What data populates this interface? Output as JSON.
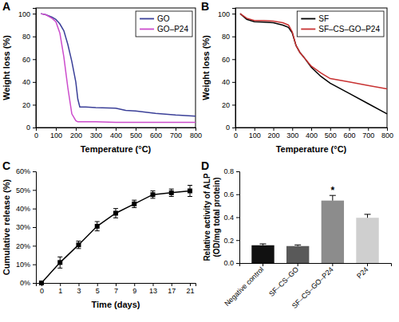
{
  "chart_data": [
    {
      "type": "line",
      "label": "A",
      "xlabel": "Temperature (°C)",
      "ylabel": "Weight loss (%)",
      "x": [
        25,
        50,
        80,
        100,
        120,
        140,
        160,
        180,
        200,
        210,
        220,
        250,
        300,
        400,
        450,
        500,
        600,
        700,
        800
      ],
      "series": [
        {
          "name": "GO",
          "color": "#3a3f98",
          "values": [
            100,
            99,
            97,
            95,
            91,
            85,
            73,
            58,
            40,
            25,
            18,
            18,
            17.5,
            17,
            15,
            14.5,
            12.5,
            11,
            10
          ]
        },
        {
          "name": "GO–P24",
          "color": "#cc4ccc",
          "values": [
            100,
            99,
            96,
            93,
            83,
            62,
            35,
            12,
            6,
            5,
            5,
            5,
            5,
            4.5,
            4.5,
            4.5,
            4.5,
            4.5,
            4.5
          ]
        }
      ],
      "xlim": [
        0,
        800
      ],
      "xticks": [
        0,
        100,
        200,
        300,
        400,
        500,
        600,
        700,
        800
      ],
      "ylim": [
        0,
        105
      ],
      "yticks": [
        0,
        20,
        40,
        60,
        80,
        100
      ],
      "legend": "top-right"
    },
    {
      "type": "line",
      "label": "B",
      "xlabel": "Temperature (°C)",
      "ylabel": "Weight loss (%)",
      "x": [
        25,
        60,
        100,
        150,
        200,
        250,
        280,
        300,
        320,
        340,
        360,
        400,
        450,
        500,
        600,
        700,
        800
      ],
      "series": [
        {
          "name": "SF",
          "color": "#000000",
          "values": [
            100,
            95,
            93,
            92.5,
            92,
            90,
            88,
            83,
            72,
            66,
            62,
            53,
            45,
            39,
            30,
            21,
            12
          ]
        },
        {
          "name": "SF–CS–GO–P24",
          "color": "#c83232",
          "values": [
            100,
            96,
            94,
            94,
            93.5,
            92,
            90,
            84,
            72,
            66,
            62,
            54,
            48,
            43,
            40,
            37,
            34
          ]
        }
      ],
      "xlim": [
        0,
        800
      ],
      "xticks": [
        0,
        100,
        200,
        300,
        400,
        500,
        600,
        700,
        800
      ],
      "ylim": [
        0,
        105
      ],
      "yticks": [
        0,
        20,
        40,
        60,
        80,
        100
      ],
      "legend": "top-right"
    },
    {
      "type": "line",
      "label": "C",
      "xlabel": "Time (days)",
      "ylabel": "Cumulative release (%)",
      "categories": [
        "0",
        "1",
        "3",
        "5",
        "7",
        "9",
        "13",
        "17",
        "21"
      ],
      "series": [
        {
          "color": "#000000",
          "marker": "square",
          "values": [
            0,
            11,
            20.5,
            30.5,
            37.5,
            42.5,
            47.5,
            48.5,
            49.5
          ],
          "errors": [
            0,
            3,
            2,
            2.5,
            2.5,
            2,
            2,
            2,
            3
          ]
        }
      ],
      "ylim": [
        0,
        60
      ],
      "yticks": [
        {
          "value": 0,
          "label": "0%"
        },
        {
          "value": 10,
          "label": "10%"
        },
        {
          "value": 20,
          "label": "20%"
        },
        {
          "value": 30,
          "label": "30%"
        },
        {
          "value": 40,
          "label": "40%"
        },
        {
          "value": 50,
          "label": "50%"
        },
        {
          "value": 60,
          "label": "60%"
        }
      ]
    },
    {
      "type": "bar",
      "label": "D",
      "ylabel": [
        "Relative activity of ALP",
        "(OD/mg total protein)"
      ],
      "categories": [
        "Negative control",
        "SF–CS–GO",
        "SF–CS–GO–P24",
        "P24"
      ],
      "values": [
        0.155,
        0.148,
        0.545,
        0.395
      ],
      "errors": [
        0.012,
        0.01,
        0.045,
        0.03
      ],
      "colors": [
        "#111111",
        "#595959",
        "#8c8c8c",
        "#cfcfcf"
      ],
      "annotations": [
        {
          "text": "*",
          "category": "SF–CS–GO–P24"
        }
      ],
      "ylim": [
        0,
        0.8
      ],
      "yticks": [
        {
          "value": 0,
          "label": "0.0"
        },
        {
          "value": 0.2,
          "label": "0.2"
        },
        {
          "value": 0.4,
          "label": "0.4"
        },
        {
          "value": 0.6,
          "label": "0.6"
        },
        {
          "value": 0.8,
          "label": "0.8"
        }
      ]
    }
  ]
}
